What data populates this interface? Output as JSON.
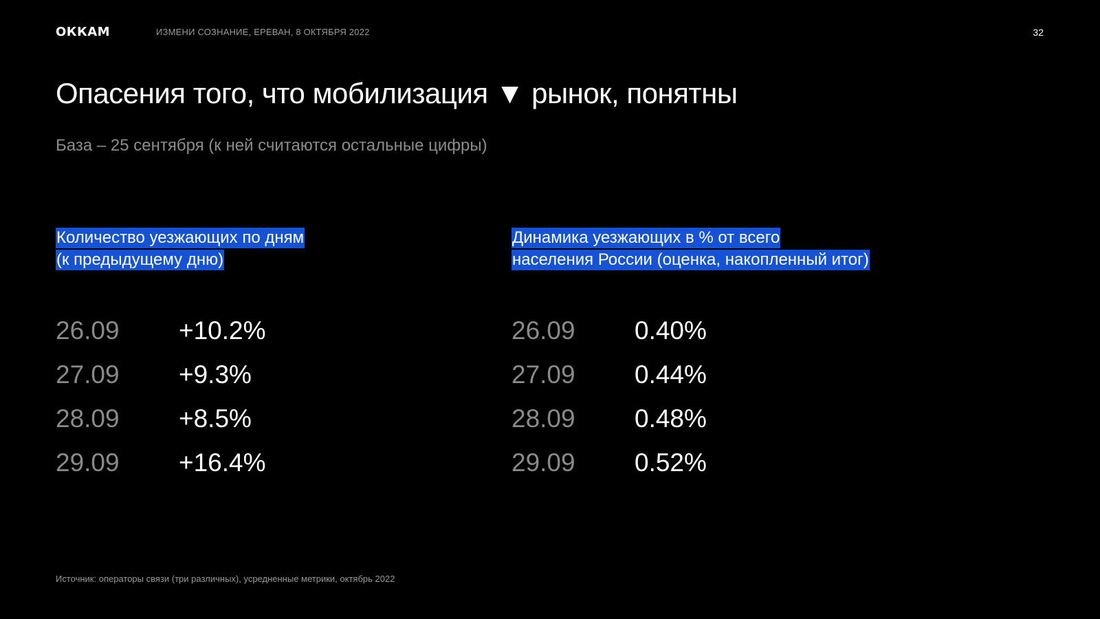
{
  "header": {
    "logo": "ОККАМ",
    "event": "ИЗМЕНИ СОЗНАНИЕ, ЕРЕВАН, 8 ОКТЯБРЯ 2022",
    "page_number": "32"
  },
  "title": "Опасения того, что мобилизация ▼ рынок, понятны",
  "subtitle": "База – 25 сентября (к ней считаются остальные цифры)",
  "left_panel": {
    "heading_line1": "Количество уезжающих по дням",
    "heading_line2": "(к предыдущему дню)",
    "rows": [
      {
        "date": "26.09",
        "value": "+10.2%"
      },
      {
        "date": "27.09",
        "value": "+9.3%"
      },
      {
        "date": "28.09",
        "value": "+8.5%"
      },
      {
        "date": "29.09",
        "value": "+16.4%"
      }
    ]
  },
  "right_panel": {
    "heading_line1": "Динамика уезжающих в % от всего",
    "heading_line2": "населения России (оценка, накопленный итог)",
    "rows": [
      {
        "date": "26.09",
        "value": "0.40%"
      },
      {
        "date": "27.09",
        "value": "0.44%"
      },
      {
        "date": "28.09",
        "value": "0.48%"
      },
      {
        "date": "29.09",
        "value": "0.52%"
      }
    ]
  },
  "footnote": "Источник: операторы связи (три различных), усредненные метрики, октябрь 2022",
  "colors": {
    "background": "#000000",
    "highlight": "#1652d6",
    "muted_text": "#8a8a8a"
  }
}
